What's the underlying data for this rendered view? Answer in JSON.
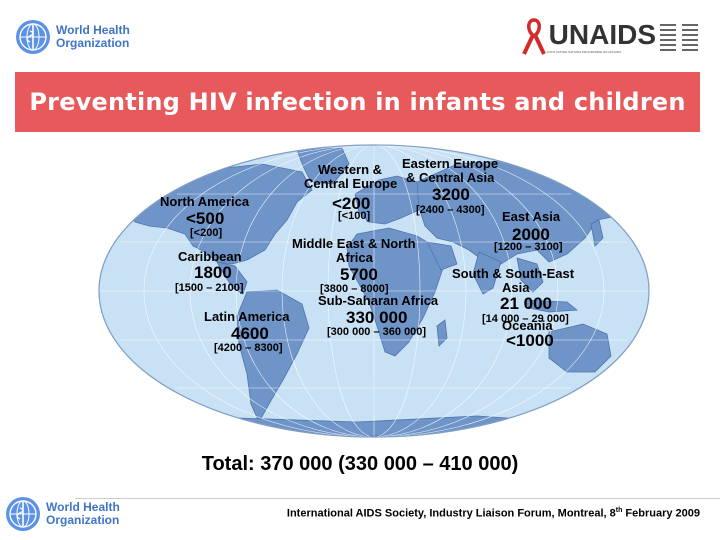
{
  "logos": {
    "who_top": {
      "line1": "World Health",
      "line2": "Organization"
    },
    "who_bottom": {
      "line1": "World Health",
      "line2": "Organization"
    },
    "unaids": {
      "wordmark": "UNAIDS",
      "tagline": "JOINT UNITED NATIONS PROGRAMME ON HIV/AIDS"
    }
  },
  "title": "Preventing HIV infection in infants and children",
  "regions": {
    "north_america": {
      "name": "North America",
      "value": "<500",
      "range": "[<200]"
    },
    "caribbean": {
      "name": "Caribbean",
      "value": "1800",
      "range": "[1500 – 2100]"
    },
    "latin_america": {
      "name": "Latin America",
      "value": "4600",
      "range": "[4200 – 8300]"
    },
    "western_central_europe": {
      "name_line1": "Western &",
      "name_line2": "Central Europe",
      "value": "<200",
      "range": "[<100]"
    },
    "eastern_europe_central_asia": {
      "name_line1": "Eastern Europe",
      "name_line2": "& Central Asia",
      "value": "3200",
      "range": "[2400 – 4300]"
    },
    "middle_east_north_africa": {
      "name_line1": "Middle East & North",
      "name_line2": "Africa",
      "value": "5700",
      "range": "[3800 – 8000]"
    },
    "sub_saharan_africa": {
      "name": "Sub-Saharan Africa",
      "value": "330 000",
      "range": "[300 000 – 360 000]"
    },
    "east_asia": {
      "name": "East Asia",
      "value": "2000",
      "range": "[1200 – 3100]"
    },
    "south_south_east_asia": {
      "name_line1": "South & South-East",
      "name_line2": "Asia",
      "value": "21 000",
      "range": "[14 000 – 29 000]"
    },
    "oceania": {
      "name": "Oceania",
      "value": "<1000"
    }
  },
  "total": {
    "prefix": "Total: ",
    "value": "370 000 (330 000 – 410 000)"
  },
  "footer": {
    "text_before": "International AIDS Society, Industry Liaison Forum, Montreal, 8",
    "superscript": "th",
    "text_after": " February 2009"
  },
  "colors": {
    "banner": "#e7595b",
    "ocean": "#c9e1f4",
    "land": "#6f94c8",
    "who_blue": "#3f74c8",
    "unaids_red": "#d42a2a"
  }
}
